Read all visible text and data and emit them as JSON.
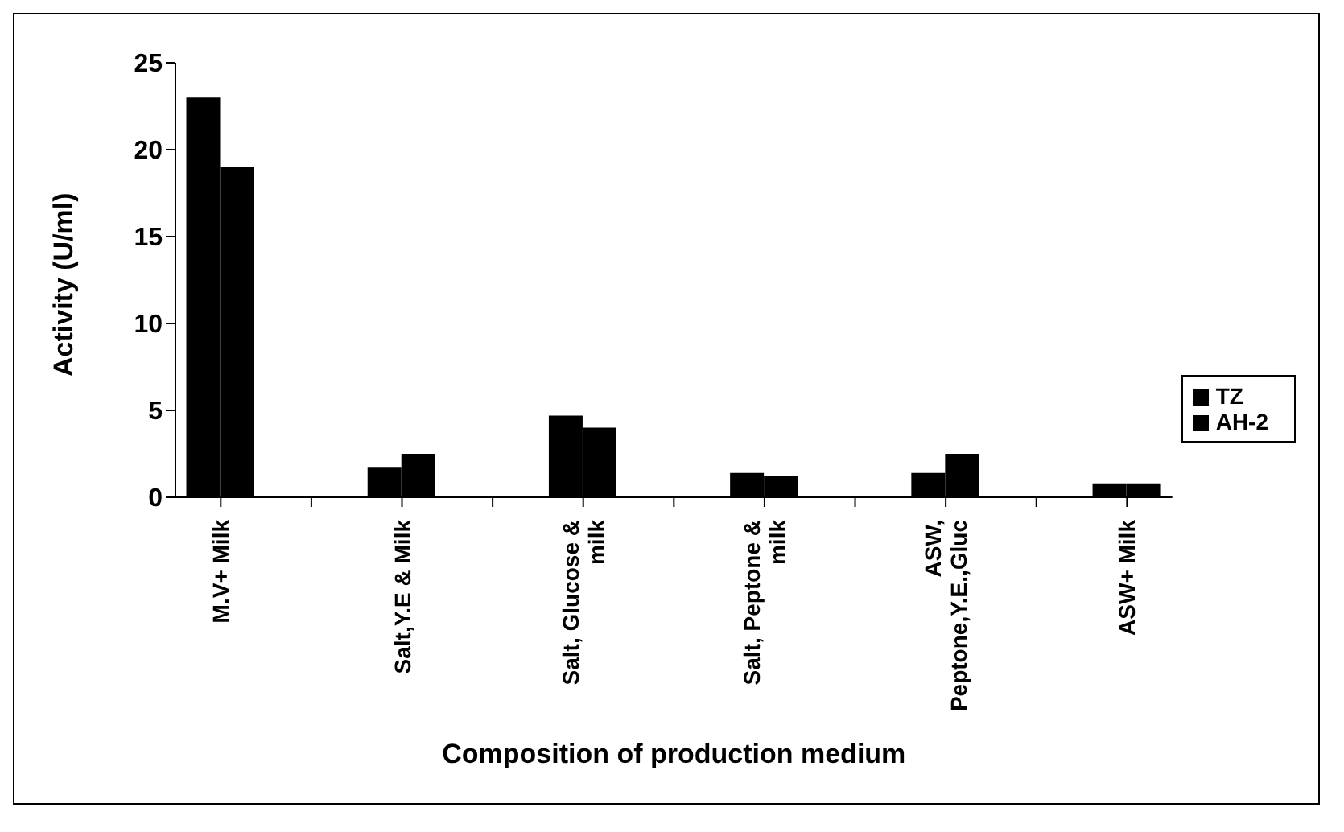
{
  "chart_data": {
    "type": "bar",
    "xlabel": "Composition of production medium",
    "ylabel": "Activity (U/ml)",
    "categories": [
      "M.V+ Milk",
      null,
      "Salt,Y.E & Milk",
      null,
      "Salt, Glucose &\nmilk",
      null,
      "Salt, Peptone &\nmilk",
      null,
      "ASW,\nPeptone,Y.E.,Gluc",
      null,
      "ASW+ Milk"
    ],
    "series": [
      {
        "name": "TZ",
        "color": "#000000",
        "values": [
          23,
          null,
          1.7,
          null,
          4.7,
          null,
          1.4,
          null,
          1.4,
          null,
          0.8
        ]
      },
      {
        "name": "AH-2",
        "color": "#000000",
        "values": [
          19,
          null,
          2.5,
          null,
          4,
          null,
          1.2,
          null,
          2.5,
          null,
          0.8
        ]
      }
    ],
    "ylim": [
      0,
      25
    ],
    "yticks": [
      0,
      5,
      10,
      15,
      20,
      25
    ],
    "legend": "right"
  }
}
